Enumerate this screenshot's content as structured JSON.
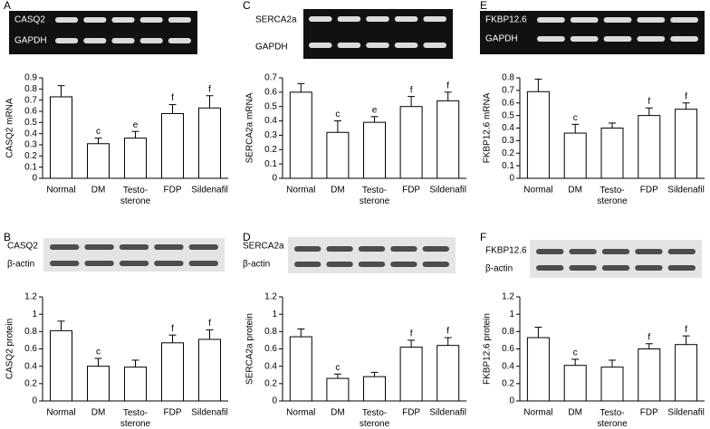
{
  "chart_data": [
    {
      "type": "bar",
      "panel": "A",
      "gel_labels": [
        "CASQ2",
        "GAPDH"
      ],
      "ylabel": "CASQ2 mRNA",
      "categories": [
        "Normal",
        "DM",
        "Testo-\nsterone",
        "FDP",
        "Sildenafil"
      ],
      "values": [
        0.73,
        0.31,
        0.36,
        0.58,
        0.63
      ],
      "errors": [
        0.1,
        0.05,
        0.06,
        0.08,
        0.11
      ],
      "annotations": [
        null,
        "c",
        "e",
        "f",
        "f"
      ],
      "color": "#ffffff",
      "ylim": [
        0,
        0.9
      ],
      "yticks": [
        0,
        0.1,
        0.2,
        0.3,
        0.4,
        0.5,
        0.6,
        0.7,
        0.8,
        0.9
      ]
    },
    {
      "type": "bar",
      "panel": "B",
      "gel_labels": [
        "CASQ2",
        "β-actin"
      ],
      "ylabel": "CASQ2 protein",
      "categories": [
        "Normal",
        "DM",
        "Testo-\nsterone",
        "FDP",
        "Sildenafil"
      ],
      "values": [
        0.81,
        0.4,
        0.39,
        0.67,
        0.71
      ],
      "errors": [
        0.11,
        0.09,
        0.08,
        0.09,
        0.11
      ],
      "annotations": [
        null,
        "c",
        null,
        "f",
        "f"
      ],
      "color": "#ffffff",
      "ylim": [
        0,
        1.2
      ],
      "yticks": [
        0,
        0.2,
        0.4,
        0.6,
        0.8,
        1,
        1.2
      ]
    },
    {
      "type": "bar",
      "panel": "C",
      "gel_labels": [
        "SERCA2a",
        "GAPDH"
      ],
      "ylabel": "SERCA2a mRNA",
      "categories": [
        "Normal",
        "DM",
        "Testo-\nsterone",
        "FDP",
        "Sildenafil"
      ],
      "values": [
        0.6,
        0.32,
        0.39,
        0.5,
        0.54
      ],
      "errors": [
        0.06,
        0.08,
        0.04,
        0.07,
        0.06
      ],
      "annotations": [
        null,
        "c",
        "e",
        "f",
        "f"
      ],
      "color": "#ffffff",
      "ylim": [
        0,
        0.7
      ],
      "yticks": [
        0,
        0.1,
        0.2,
        0.3,
        0.4,
        0.5,
        0.6,
        0.7
      ]
    },
    {
      "type": "bar",
      "panel": "D",
      "gel_labels": [
        "SERCA2a",
        "β-actin"
      ],
      "ylabel": "SERCA2a protein",
      "categories": [
        "Normal",
        "DM",
        "Testo-\nsterone",
        "FDP",
        "Sildenafil"
      ],
      "values": [
        0.74,
        0.26,
        0.28,
        0.62,
        0.64
      ],
      "errors": [
        0.09,
        0.05,
        0.05,
        0.08,
        0.09
      ],
      "annotations": [
        null,
        "c",
        null,
        "f",
        "f"
      ],
      "color": "#ffffff",
      "ylim": [
        0,
        1.2
      ],
      "yticks": [
        0,
        0.2,
        0.4,
        0.6,
        0.8,
        1,
        1.2
      ]
    },
    {
      "type": "bar",
      "panel": "E",
      "gel_labels": [
        "FKBP12.6",
        "GAPDH"
      ],
      "ylabel": "FKBP12.6 mRNA",
      "categories": [
        "Normal",
        "DM",
        "Testo-\nsterone",
        "FDP",
        "Sildenafil"
      ],
      "values": [
        0.69,
        0.36,
        0.4,
        0.5,
        0.55
      ],
      "errors": [
        0.1,
        0.07,
        0.04,
        0.06,
        0.05
      ],
      "annotations": [
        null,
        "c",
        null,
        "f",
        "f"
      ],
      "color": "#ffffff",
      "ylim": [
        0,
        0.8
      ],
      "yticks": [
        0,
        0.1,
        0.2,
        0.3,
        0.4,
        0.5,
        0.6,
        0.7,
        0.8
      ]
    },
    {
      "type": "bar",
      "panel": "F",
      "gel_labels": [
        "FKBP12.6",
        "β-actin"
      ],
      "ylabel": "FKBP12.6 protein",
      "categories": [
        "Normal",
        "DM",
        "Testo-\nsterone",
        "FDP",
        "Sildenafil"
      ],
      "values": [
        0.73,
        0.41,
        0.39,
        0.6,
        0.65
      ],
      "errors": [
        0.12,
        0.07,
        0.08,
        0.06,
        0.1
      ],
      "annotations": [
        null,
        "c",
        null,
        "f",
        "f"
      ],
      "color": "#ffffff",
      "ylim": [
        0,
        1.2
      ],
      "yticks": [
        0,
        0.2,
        0.4,
        0.6,
        0.8,
        1,
        1.2
      ]
    }
  ]
}
